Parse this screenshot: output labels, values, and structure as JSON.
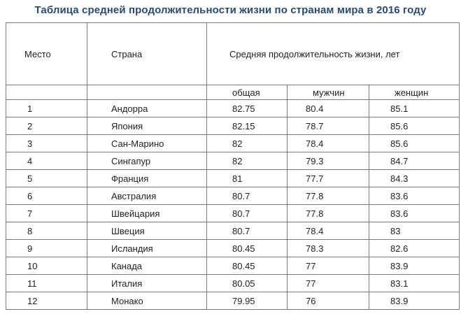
{
  "title": "Таблица средней продолжительности жизни по странам мира в 2016 году",
  "table": {
    "col_place": "Место",
    "col_country": "Страна",
    "col_life": "Средняя продолжительность жизни, лет",
    "sub_total": "общая",
    "sub_men": "мужчин",
    "sub_women": "женщин",
    "rows": [
      {
        "place": "1",
        "country": "Андорра",
        "total": "82.75",
        "men": "80.4",
        "women": "85.1"
      },
      {
        "place": "2",
        "country": "Япония",
        "total": "82.15",
        "men": "78.7",
        "women": "85.6"
      },
      {
        "place": "3",
        "country": "Сан-Марино",
        "total": "82",
        "men": "78.4",
        "women": "85.6"
      },
      {
        "place": "4",
        "country": "Сингапур",
        "total": "82",
        "men": "79.3",
        "women": "84.7"
      },
      {
        "place": "5",
        "country": "Франция",
        "total": "81",
        "men": "77.7",
        "women": "84.3"
      },
      {
        "place": "6",
        "country": "Австралия",
        "total": "80.7",
        "men": "77.8",
        "women": "83.6"
      },
      {
        "place": "7",
        "country": "Швейцария",
        "total": "80.7",
        "men": "77.8",
        "women": "83.6"
      },
      {
        "place": "8",
        "country": "Швеция",
        "total": "80.7",
        "men": "78.4",
        "women": "83"
      },
      {
        "place": "9",
        "country": "Исландия",
        "total": "80.45",
        "men": "78.3",
        "women": "82.6"
      },
      {
        "place": "10",
        "country": "Канада",
        "total": "80.45",
        "men": "77",
        "women": "83.9"
      },
      {
        "place": "11",
        "country": "Италия",
        "total": "80.05",
        "men": "77",
        "women": "83.1"
      },
      {
        "place": "12",
        "country": "Монако",
        "total": "79.95",
        "men": "76",
        "women": "83.9"
      }
    ]
  }
}
